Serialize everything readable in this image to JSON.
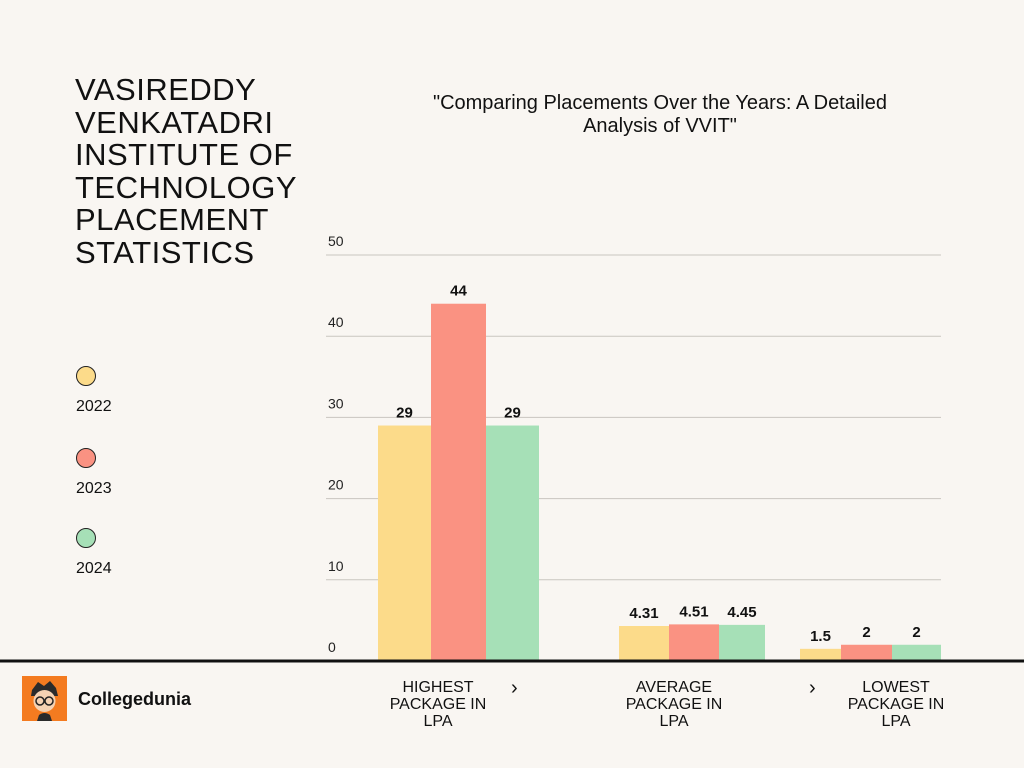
{
  "title_lines": [
    "VASIREDDY",
    "VENKATADRI",
    "INSTITUTE OF",
    "TECHNOLOGY",
    "PLACEMENT",
    "STATISTICS"
  ],
  "brand": {
    "name": "Collegedunia",
    "logo_icon": "collegedunia-mascot-icon"
  },
  "chevron_icon": "chevron-right-icon",
  "chart_data": {
    "type": "bar",
    "title": "\"Comparing Placements Over the Years: A Detailed Analysis of VVIT\"",
    "categories": [
      "HIGHEST PACKAGE IN LPA",
      "AVERAGE PACKAGE IN LPA",
      "LOWEST PACKAGE IN LPA"
    ],
    "series": [
      {
        "name": "2022",
        "color": "#fcdb8a",
        "values": [
          29,
          4.31,
          1.5
        ],
        "labels": [
          "29",
          "4.31",
          "1.5"
        ]
      },
      {
        "name": "2023",
        "color": "#fa9282",
        "values": [
          44,
          4.51,
          2
        ],
        "labels": [
          "44",
          "4.51",
          "2"
        ]
      },
      {
        "name": "2024",
        "color": "#a6e0b7",
        "values": [
          29,
          4.45,
          2
        ],
        "labels": [
          "29",
          "4.45",
          "2"
        ]
      }
    ],
    "ylim": [
      0,
      50
    ],
    "yticks": [
      0,
      10,
      20,
      30,
      40,
      50
    ],
    "xlabel": "",
    "ylabel": "",
    "grid": true,
    "legend_position": "left"
  }
}
